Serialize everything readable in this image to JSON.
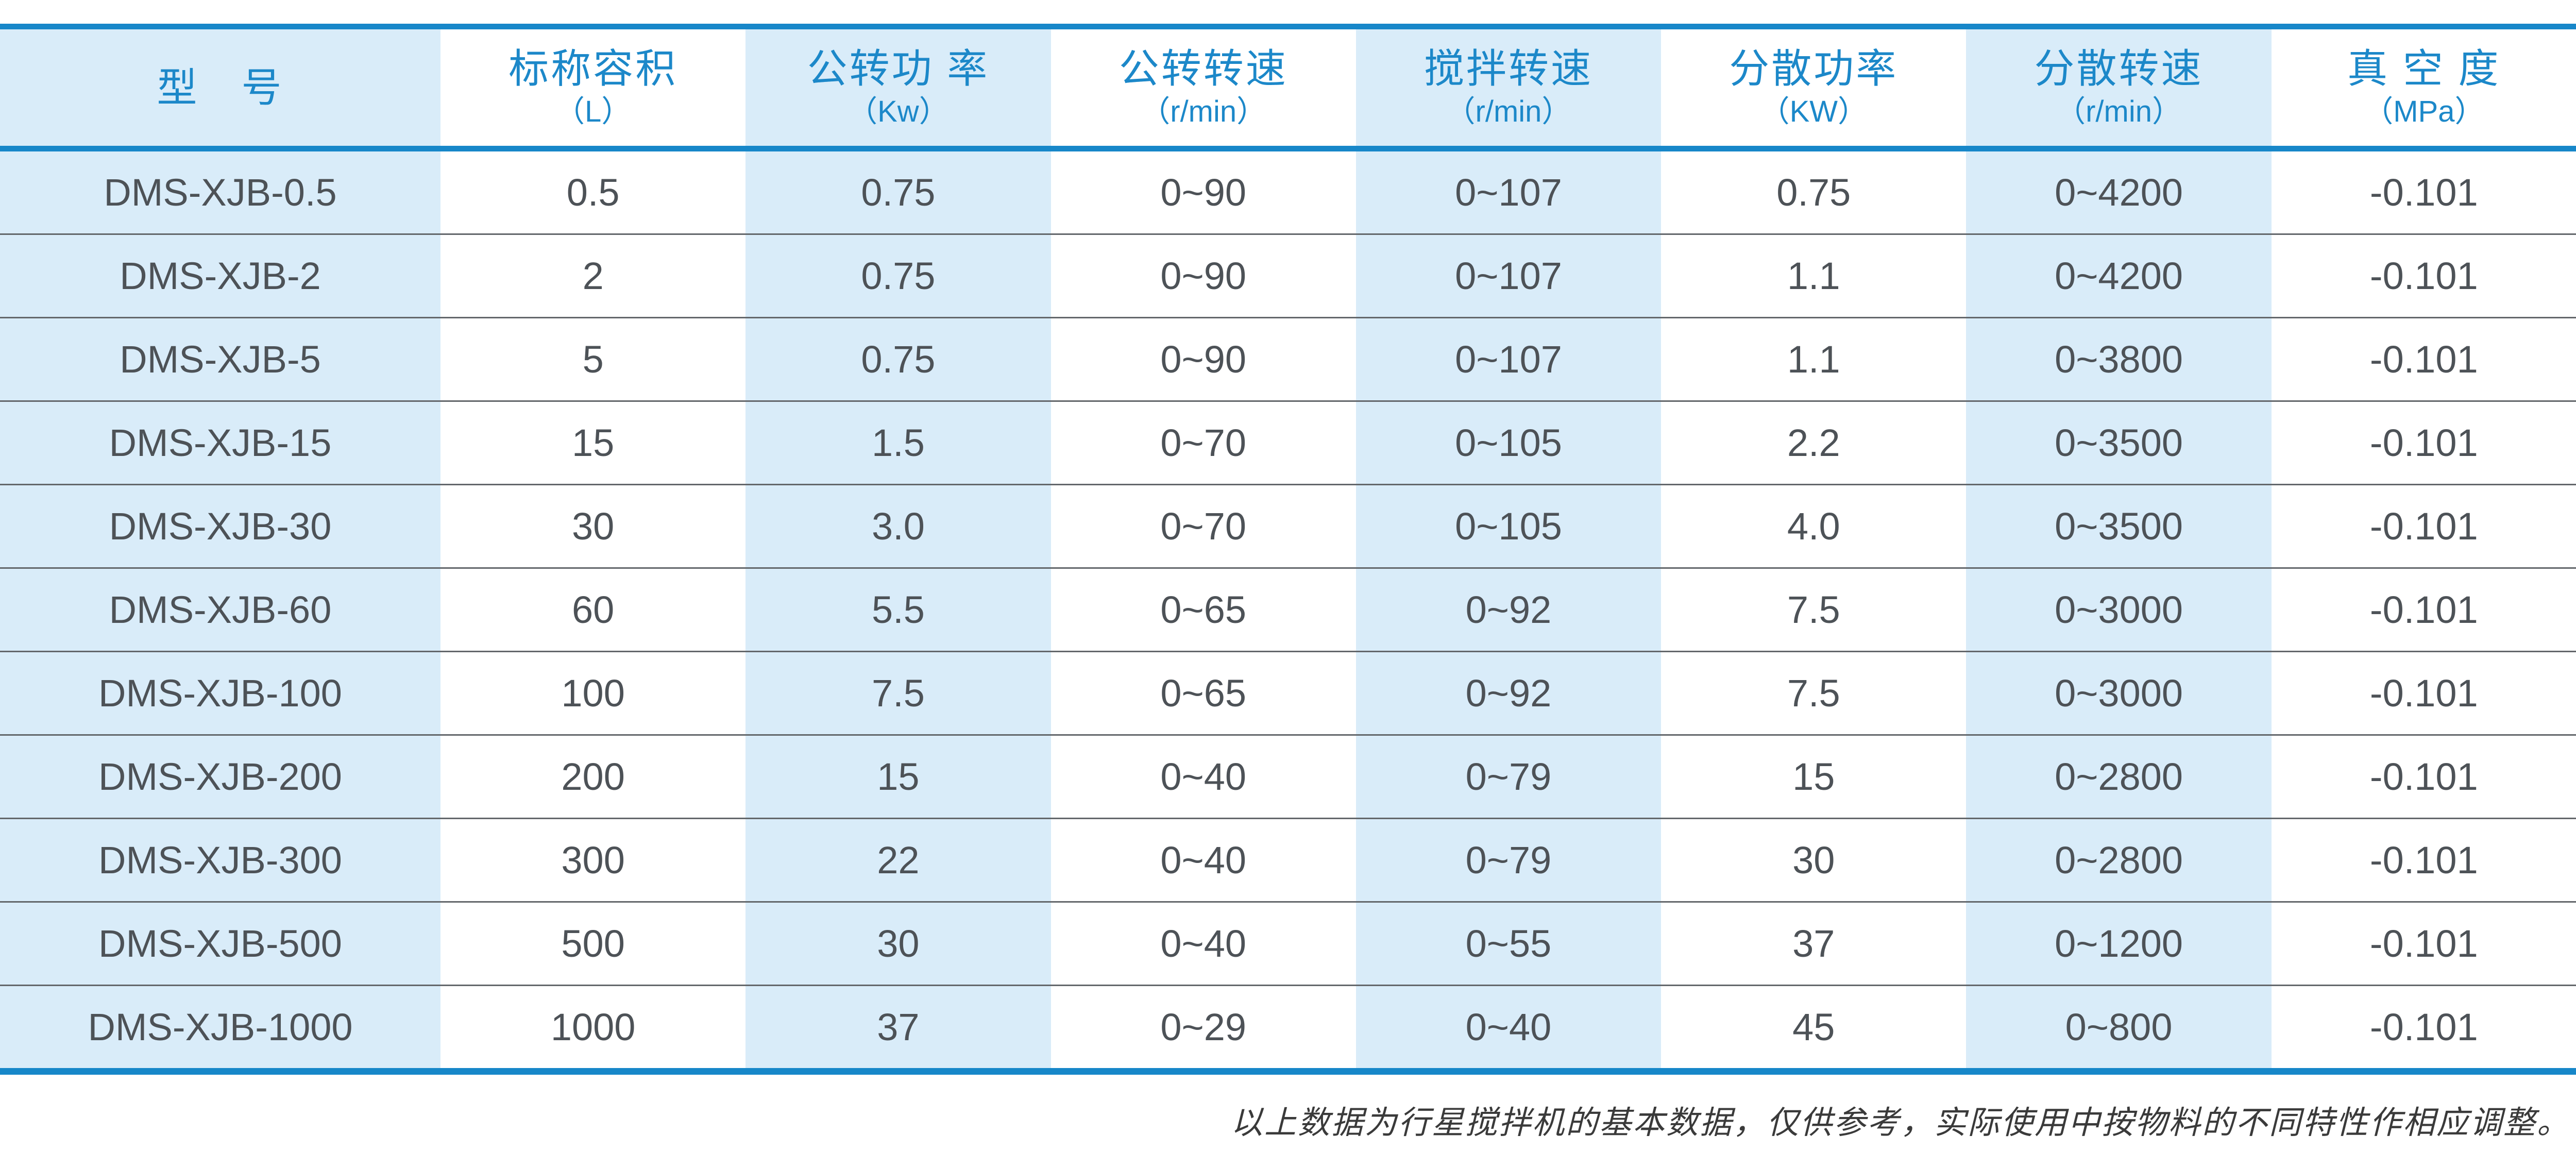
{
  "table": {
    "columns": [
      {
        "label": "型　号",
        "unit": ""
      },
      {
        "label": "标称容积",
        "unit": "（L）"
      },
      {
        "label": "公转功 率",
        "unit": "（Kw）"
      },
      {
        "label": "公转转速",
        "unit": "（r/min）"
      },
      {
        "label": "搅拌转速",
        "unit": "（r/min）"
      },
      {
        "label": "分散功率",
        "unit": "（KW）"
      },
      {
        "label": "分散转速",
        "unit": "（r/min）"
      },
      {
        "label": "真 空 度",
        "unit": "（MPa）"
      }
    ],
    "rows": [
      [
        "DMS-XJB-0.5",
        "0.5",
        "0.75",
        "0~90",
        "0~107",
        "0.75",
        "0~4200",
        "-0.101"
      ],
      [
        "DMS-XJB-2",
        "2",
        "0.75",
        "0~90",
        "0~107",
        "1.1",
        "0~4200",
        "-0.101"
      ],
      [
        "DMS-XJB-5",
        "5",
        "0.75",
        "0~90",
        "0~107",
        "1.1",
        "0~3800",
        "-0.101"
      ],
      [
        "DMS-XJB-15",
        "15",
        "1.5",
        "0~70",
        "0~105",
        "2.2",
        "0~3500",
        "-0.101"
      ],
      [
        "DMS-XJB-30",
        "30",
        "3.0",
        "0~70",
        "0~105",
        "4.0",
        "0~3500",
        "-0.101"
      ],
      [
        "DMS-XJB-60",
        "60",
        "5.5",
        "0~65",
        "0~92",
        "7.5",
        "0~3000",
        "-0.101"
      ],
      [
        "DMS-XJB-100",
        "100",
        "7.5",
        "0~65",
        "0~92",
        "7.5",
        "0~3000",
        "-0.101"
      ],
      [
        "DMS-XJB-200",
        "200",
        "15",
        "0~40",
        "0~79",
        "15",
        "0~2800",
        "-0.101"
      ],
      [
        "DMS-XJB-300",
        "300",
        "22",
        "0~40",
        "0~79",
        "30",
        "0~2800",
        "-0.101"
      ],
      [
        "DMS-XJB-500",
        "500",
        "30",
        "0~40",
        "0~55",
        "37",
        "0~1200",
        "-0.101"
      ],
      [
        "DMS-XJB-1000",
        "1000",
        "37",
        "0~29",
        "0~40",
        "45",
        "0~800",
        "-0.101"
      ]
    ],
    "footnote": "以上数据为行星搅拌机的基本数据，仅供参考，实际使用中按物料的不同特性作相应调整。"
  },
  "colors": {
    "accent_bar": "#1787c9",
    "stripe_fill": "#d9ecf9",
    "header_text": "#1c88c9",
    "cell_text": "#4d5257",
    "row_divider": "#63676b",
    "footnote_text": "#3a3a3a"
  }
}
